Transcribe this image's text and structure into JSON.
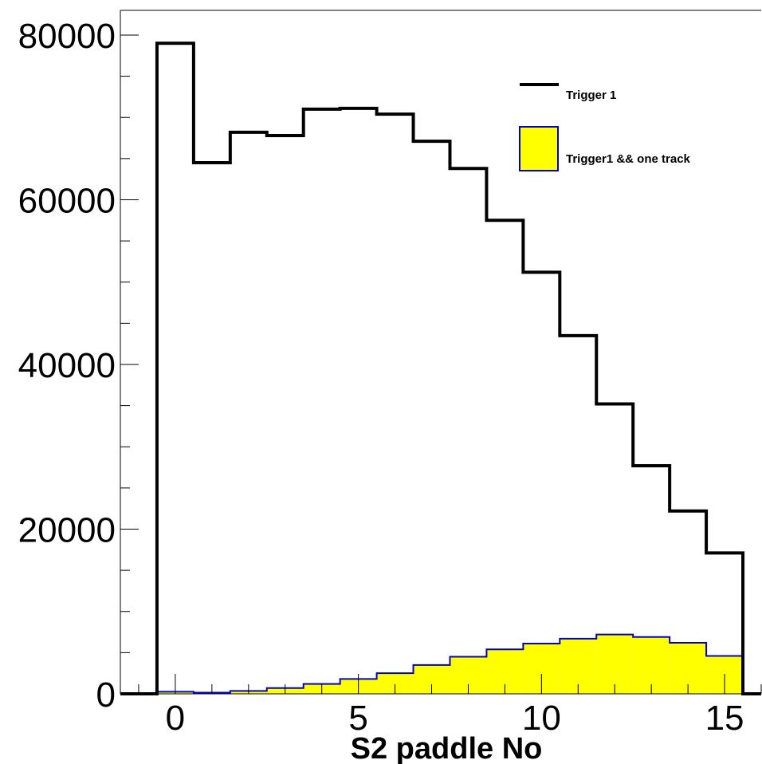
{
  "chart_data": {
    "type": "histogram",
    "xlabel": "S2 paddle No",
    "ylabel": "",
    "title": "",
    "xlim": [
      -1.5,
      16.0
    ],
    "ylim": [
      0,
      83000
    ],
    "x_ticks": [
      0,
      5,
      10,
      15
    ],
    "x_tick_labels": [
      "0",
      "5",
      "10",
      "15"
    ],
    "y_ticks": [
      0,
      20000,
      40000,
      60000,
      80000
    ],
    "y_tick_labels": [
      "0",
      "20000",
      "40000",
      "60000",
      "80000"
    ],
    "bin_width": 1,
    "bins": [
      0,
      1,
      2,
      3,
      4,
      5,
      6,
      7,
      8,
      9,
      10,
      11,
      12,
      13,
      14,
      15
    ],
    "legend_position": "top-right",
    "grid": false,
    "series": [
      {
        "name": "Trigger 1",
        "style": "line",
        "color": "#000000",
        "values": [
          79000,
          64500,
          68200,
          67800,
          71000,
          71100,
          70400,
          67100,
          63800,
          57500,
          51200,
          43500,
          35200,
          27700,
          22200,
          17100
        ]
      },
      {
        "name": "Trigger1 && one track",
        "style": "filled",
        "color": "#ffff00",
        "edge_color": "#0000cc",
        "values": [
          250,
          150,
          350,
          700,
          1200,
          1800,
          2500,
          3500,
          4500,
          5400,
          6100,
          6700,
          7200,
          6900,
          6200,
          4600
        ]
      }
    ]
  }
}
